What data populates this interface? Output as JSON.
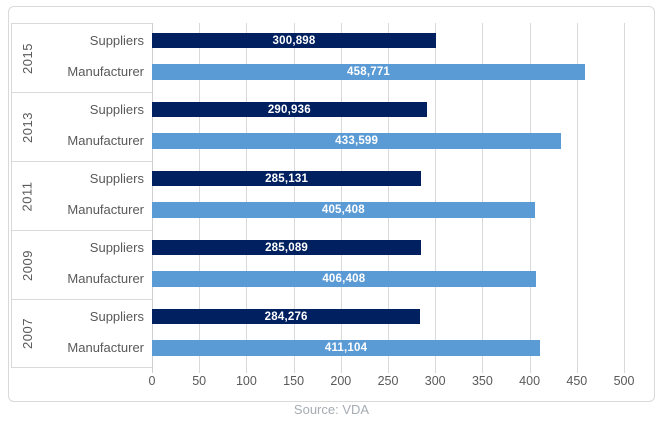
{
  "chart_data": {
    "type": "bar",
    "orientation": "horizontal",
    "title": "",
    "xlabel": "",
    "ylabel": "",
    "xlim": [
      0,
      500
    ],
    "axis_divisor": 1000,
    "xticks": [
      "0",
      "50",
      "100",
      "150",
      "200",
      "250",
      "300",
      "350",
      "400",
      "450",
      "500"
    ],
    "series_names": [
      "Suppliers",
      "Manufacturer"
    ],
    "grid": "vertical",
    "legend": "none",
    "groups": [
      {
        "year": "2015",
        "bars": [
          {
            "name": "Suppliers",
            "value": 300898,
            "label": "300,898"
          },
          {
            "name": "Manufacturer",
            "value": 458771,
            "label": "458,771"
          }
        ]
      },
      {
        "year": "2013",
        "bars": [
          {
            "name": "Suppliers",
            "value": 290936,
            "label": "290,936"
          },
          {
            "name": "Manufacturer",
            "value": 433599,
            "label": "433,599"
          }
        ]
      },
      {
        "year": "2011",
        "bars": [
          {
            "name": "Suppliers",
            "value": 285131,
            "label": "285,131"
          },
          {
            "name": "Manufacturer",
            "value": 405408,
            "label": "405,408"
          }
        ]
      },
      {
        "year": "2009",
        "bars": [
          {
            "name": "Suppliers",
            "value": 285089,
            "label": "285,089"
          },
          {
            "name": "Manufacturer",
            "value": 406408,
            "label": "406,408"
          }
        ]
      },
      {
        "year": "2007",
        "bars": [
          {
            "name": "Suppliers",
            "value": 284276,
            "label": "284,276"
          },
          {
            "name": "Manufacturer",
            "value": 411104,
            "label": "411,104"
          }
        ]
      }
    ],
    "colors": {
      "suppliers_bar": "#002060",
      "manufacturer_bar": "#5B9BD5",
      "gridline": "#D9D9D9",
      "axis_text": "#595959",
      "bar_label_text": "#FFFFFF",
      "source_text": "#A6ACB3",
      "frame_border": "#D9D9D9"
    },
    "source": "Source: VDA"
  }
}
